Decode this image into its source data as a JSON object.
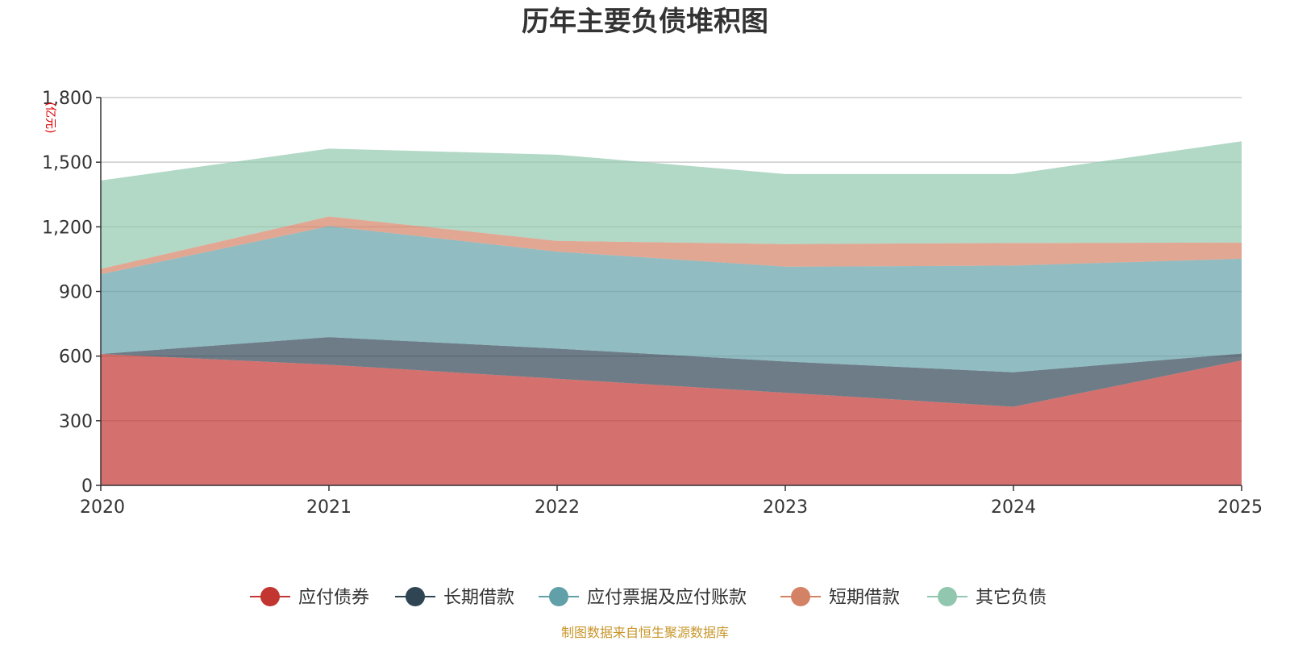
{
  "chart_data": {
    "type": "area",
    "stacked": true,
    "title": "历年主要负债堆积图",
    "unit_label": "(亿元)",
    "categories": [
      "2020",
      "2021",
      "2022",
      "2023",
      "2024",
      "2025"
    ],
    "ylim": [
      0,
      1800
    ],
    "yticks": [
      0,
      300,
      600,
      900,
      1200,
      1500,
      1800
    ],
    "ytick_labels": [
      "0",
      "300",
      "600",
      "900",
      "1,200",
      "1,500",
      "1,800"
    ],
    "grid": true,
    "legend_position": "bottom",
    "series": [
      {
        "name": "应付债券",
        "color": "#c23531",
        "values": [
          610,
          560,
          495,
          430,
          365,
          580
        ]
      },
      {
        "name": "长期借款",
        "color": "#2f4554",
        "values": [
          0,
          128,
          140,
          145,
          160,
          32
        ]
      },
      {
        "name": "应付票据及应付账款",
        "color": "#61a0a8",
        "values": [
          370,
          515,
          450,
          440,
          495,
          440
        ]
      },
      {
        "name": "短期借款",
        "color": "#d48265",
        "values": [
          25,
          45,
          50,
          105,
          105,
          75
        ]
      },
      {
        "name": "其它负债",
        "color": "#91c7ae",
        "values": [
          410,
          315,
          400,
          325,
          320,
          470
        ]
      }
    ],
    "source": "制图数据来自恒生聚源数据库"
  }
}
